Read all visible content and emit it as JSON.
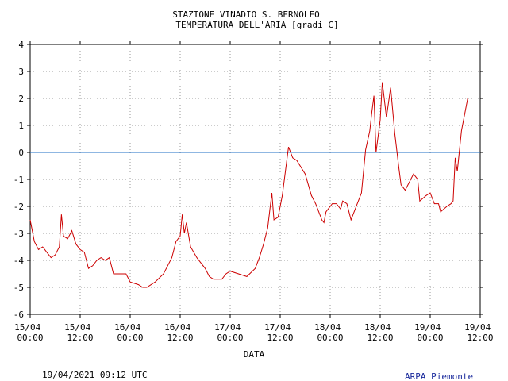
{
  "chart_data": {
    "type": "line",
    "title": "STAZIONE VINADIO S. BERNOLFO",
    "subtitle": "TEMPERATURA DELL'ARIA [gradi C]",
    "x_label": "DATA",
    "timestamp": "19/04/2021 09:12 UTC",
    "source": "ARPA Piemonte",
    "xlim": [
      "15/04 00:00",
      "19/04 12:00"
    ],
    "xticks": [
      "15/04 00:00",
      "15/04 12:00",
      "16/04 00:00",
      "16/04 12:00",
      "17/04 00:00",
      "17/04 12:00",
      "18/04 00:00",
      "18/04 12:00",
      "19/04 00:00",
      "19/04 12:00"
    ],
    "ylim": [
      -6,
      4
    ],
    "yticks": [
      -6,
      -5,
      -4,
      -3,
      -2,
      -1,
      0,
      1,
      2,
      3,
      4
    ],
    "grid": true,
    "reference_line": {
      "value": 0,
      "color": "#1f6fc4"
    },
    "x": [
      "15/04 00:00",
      "15/04 01:00",
      "15/04 02:00",
      "15/04 03:00",
      "15/04 04:00",
      "15/04 05:00",
      "15/04 06:00",
      "15/04 07:00",
      "15/04 07:30",
      "15/04 08:00",
      "15/04 09:00",
      "15/04 10:00",
      "15/04 11:00",
      "15/04 12:00",
      "15/04 13:00",
      "15/04 14:00",
      "15/04 15:00",
      "15/04 16:00",
      "15/04 17:00",
      "15/04 18:00",
      "15/04 19:00",
      "15/04 20:00",
      "15/04 23:00",
      "16/04 00:00",
      "16/04 02:00",
      "16/04 03:00",
      "16/04 04:00",
      "16/04 06:00",
      "16/04 08:00",
      "16/04 09:00",
      "16/04 10:00",
      "16/04 11:00",
      "16/04 12:00",
      "16/04 12:30",
      "16/04 13:00",
      "16/04 13:30",
      "16/04 14:30",
      "16/04 16:00",
      "16/04 18:00",
      "16/04 19:00",
      "16/04 20:00",
      "16/04 22:00",
      "16/04 23:00",
      "17/04 00:00",
      "17/04 02:00",
      "17/04 04:00",
      "17/04 06:00",
      "17/04 07:00",
      "17/04 08:00",
      "17/04 09:00",
      "17/04 10:00",
      "17/04 10:30",
      "17/04 11:30",
      "17/04 12:30",
      "17/04 13:30",
      "17/04 14:00",
      "17/04 15:00",
      "17/04 16:00",
      "17/04 18:00",
      "17/04 19:30",
      "17/04 20:30",
      "17/04 22:00",
      "17/04 22:30",
      "17/04 23:00",
      "18/04 00:30",
      "18/04 01:30",
      "18/04 02:30",
      "18/04 03:00",
      "18/04 04:00",
      "18/04 05:00",
      "18/04 06:30",
      "18/04 07:30",
      "18/04 08:30",
      "18/04 09:30",
      "18/04 10:00",
      "18/04 10:30",
      "18/04 11:00",
      "18/04 12:00",
      "18/04 12:30",
      "18/04 13:30",
      "18/04 14:30",
      "18/04 15:30",
      "18/04 16:30",
      "18/04 17:00",
      "18/04 18:00",
      "18/04 19:00",
      "18/04 20:00",
      "18/04 21:00",
      "18/04 21:30",
      "18/04 23:00",
      "19/04 00:00",
      "19/04 01:00",
      "19/04 02:00",
      "19/04 02:30",
      "19/04 04:00",
      "19/04 05:00",
      "19/04 05:30",
      "19/04 06:00",
      "19/04 06:30",
      "19/04 07:30",
      "19/04 09:00"
    ],
    "series": [
      {
        "name": "Temperatura",
        "color": "#cc0000",
        "values": [
          -2.5,
          -3.3,
          -3.6,
          -3.5,
          -3.7,
          -3.9,
          -3.8,
          -3.5,
          -2.3,
          -3.1,
          -3.2,
          -2.9,
          -3.4,
          -3.6,
          -3.7,
          -4.3,
          -4.2,
          -4.0,
          -3.9,
          -4.0,
          -3.9,
          -4.5,
          -4.5,
          -4.8,
          -4.9,
          -5.0,
          -5.0,
          -4.8,
          -4.5,
          -4.2,
          -3.9,
          -3.3,
          -3.1,
          -2.3,
          -3.0,
          -2.6,
          -3.5,
          -3.9,
          -4.3,
          -4.6,
          -4.7,
          -4.7,
          -4.5,
          -4.4,
          -4.5,
          -4.6,
          -4.3,
          -3.9,
          -3.4,
          -2.8,
          -1.5,
          -2.5,
          -2.4,
          -1.6,
          -0.4,
          0.2,
          -0.2,
          -0.3,
          -0.8,
          -1.6,
          -1.9,
          -2.5,
          -2.6,
          -2.2,
          -1.9,
          -1.9,
          -2.1,
          -1.8,
          -1.9,
          -2.5,
          -1.9,
          -1.5,
          0.1,
          0.8,
          1.5,
          2.1,
          0.0,
          1.2,
          2.6,
          1.3,
          2.4,
          0.7,
          -0.6,
          -1.2,
          -1.4,
          -1.1,
          -0.8,
          -1.0,
          -1.8,
          -1.6,
          -1.5,
          -1.9,
          -1.9,
          -2.2,
          -2.0,
          -1.9,
          -1.8,
          -0.2,
          -0.7,
          0.8,
          2.0
        ]
      }
    ]
  }
}
